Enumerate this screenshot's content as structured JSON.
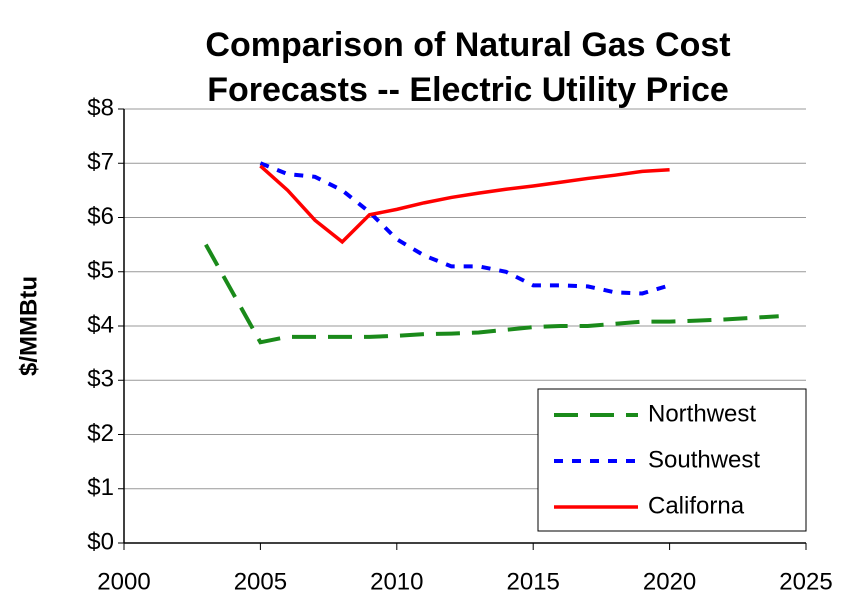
{
  "chart_data": {
    "type": "line",
    "title": [
      "Comparison of Natural Gas Cost",
      "Forecasts -- Electric Utility Price"
    ],
    "ylabel": "$/MMBtu",
    "x": [
      2003,
      2004,
      2005,
      2006,
      2007,
      2008,
      2009,
      2010,
      2011,
      2012,
      2013,
      2014,
      2015,
      2016,
      2017,
      2018,
      2019,
      2020,
      2021,
      2022,
      2023,
      2024
    ],
    "series": [
      {
        "name": "Northwest",
        "color": "#1a8a1a",
        "dash": "dashed",
        "values": [
          5.5,
          4.6,
          3.7,
          3.8,
          3.8,
          3.8,
          3.8,
          3.82,
          3.85,
          3.86,
          3.88,
          3.93,
          3.98,
          4.0,
          4.0,
          4.04,
          4.08,
          4.08,
          4.1,
          4.12,
          4.15,
          4.18
        ]
      },
      {
        "name": "Southwest",
        "color": "#0000ff",
        "dash": "dotted",
        "values": [
          null,
          null,
          7.0,
          6.8,
          6.75,
          6.5,
          6.1,
          5.6,
          5.3,
          5.1,
          5.1,
          5.0,
          4.75,
          4.75,
          4.73,
          4.62,
          4.6,
          4.75,
          null,
          null,
          null,
          null
        ]
      },
      {
        "name": "Californa",
        "color": "#ff0000",
        "dash": "solid",
        "values": [
          null,
          null,
          6.95,
          6.5,
          5.95,
          5.55,
          6.05,
          6.15,
          6.27,
          6.37,
          6.45,
          6.52,
          6.58,
          6.65,
          6.72,
          6.78,
          6.85,
          6.88,
          null,
          null,
          null,
          null
        ]
      }
    ],
    "xlim": [
      2000,
      2025
    ],
    "xticks": [
      2000,
      2005,
      2010,
      2015,
      2020,
      2025
    ],
    "ylim": [
      0,
      8
    ],
    "yticks": [
      {
        "value": 0,
        "label": "$0"
      },
      {
        "value": 1,
        "label": "$1"
      },
      {
        "value": 2,
        "label": "$2"
      },
      {
        "value": 3,
        "label": "$3"
      },
      {
        "value": 4,
        "label": "$4"
      },
      {
        "value": 5,
        "label": "$5"
      },
      {
        "value": 6,
        "label": "$6"
      },
      {
        "value": 7,
        "label": "$7"
      },
      {
        "value": 8,
        "label": "$8"
      }
    ],
    "grid": true,
    "legend": "lower right"
  }
}
